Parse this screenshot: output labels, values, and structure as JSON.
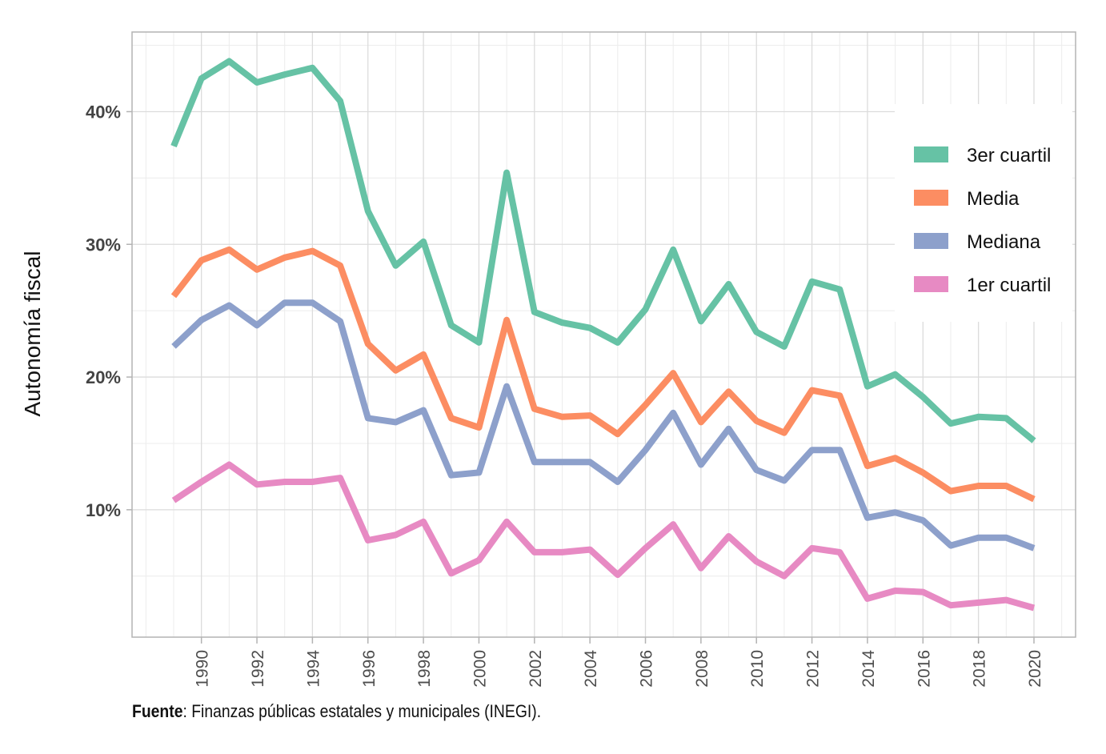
{
  "chart_data": {
    "type": "line",
    "title": "",
    "xlabel": "",
    "ylabel": "Autonomía fiscal",
    "x": [
      1989,
      1990,
      1991,
      1992,
      1993,
      1994,
      1995,
      1996,
      1997,
      1998,
      1999,
      2000,
      2001,
      2002,
      2003,
      2004,
      2005,
      2006,
      2007,
      2008,
      2009,
      2010,
      2011,
      2012,
      2013,
      2014,
      2015,
      2016,
      2017,
      2018,
      2019,
      2020
    ],
    "xlim": [
      1987.5,
      2021.5
    ],
    "x_ticks": [
      1990,
      1992,
      1994,
      1996,
      1998,
      2000,
      2002,
      2004,
      2006,
      2008,
      2010,
      2012,
      2014,
      2016,
      2018,
      2020
    ],
    "x_tick_labels": [
      "1990",
      "1992",
      "1994",
      "1996",
      "1998",
      "2000",
      "2002",
      "2004",
      "2006",
      "2008",
      "2010",
      "2012",
      "2014",
      "2016",
      "2018",
      "2020"
    ],
    "ylim": [
      0.4,
      46.0
    ],
    "y_ticks": [
      10,
      20,
      30,
      40
    ],
    "y_tick_labels": [
      "10%",
      "20%",
      "30%",
      "40%"
    ],
    "y_unit": "%",
    "grid": true,
    "legend_position": "top-right",
    "series": [
      {
        "name": "3er cuartil",
        "color": "#66c2a5",
        "values": [
          37.4,
          42.5,
          43.8,
          42.2,
          42.8,
          43.3,
          40.8,
          32.5,
          28.4,
          30.2,
          23.9,
          22.6,
          35.4,
          24.9,
          24.1,
          23.7,
          22.6,
          25.1,
          29.6,
          24.2,
          27.0,
          23.4,
          22.3,
          27.2,
          26.6,
          19.3,
          20.2,
          18.5,
          16.5,
          17.0,
          16.9,
          15.2
        ]
      },
      {
        "name": "Media",
        "color": "#fc8d62",
        "values": [
          26.1,
          28.8,
          29.6,
          28.1,
          29.0,
          29.5,
          28.4,
          22.5,
          20.5,
          21.7,
          16.9,
          16.2,
          24.3,
          17.6,
          17.0,
          17.1,
          15.7,
          17.9,
          20.3,
          16.6,
          18.9,
          16.7,
          15.8,
          19.0,
          18.6,
          13.3,
          13.9,
          12.8,
          11.4,
          11.8,
          11.8,
          10.8
        ]
      },
      {
        "name": "Mediana",
        "color": "#8da0cb",
        "values": [
          22.3,
          24.3,
          25.4,
          23.9,
          25.6,
          25.6,
          24.2,
          16.9,
          16.6,
          17.5,
          12.6,
          12.8,
          19.3,
          13.6,
          13.6,
          13.6,
          12.1,
          14.5,
          17.3,
          13.4,
          16.1,
          13.0,
          12.2,
          14.5,
          14.5,
          9.4,
          9.8,
          9.2,
          7.3,
          7.9,
          7.9,
          7.1
        ]
      },
      {
        "name": "1er cuartil",
        "color": "#e78ac3",
        "values": [
          10.7,
          12.1,
          13.4,
          11.9,
          12.1,
          12.1,
          12.4,
          7.7,
          8.1,
          9.1,
          5.2,
          6.2,
          9.1,
          6.8,
          6.8,
          7.0,
          5.1,
          7.1,
          8.9,
          5.6,
          8.0,
          6.1,
          5.0,
          7.1,
          6.8,
          3.3,
          3.9,
          3.8,
          2.8,
          3.0,
          3.2,
          2.6
        ]
      }
    ]
  },
  "footer": {
    "source_label": "Fuente",
    "source_text": ": Finanzas públicas estatales y municipales (INEGI)."
  }
}
